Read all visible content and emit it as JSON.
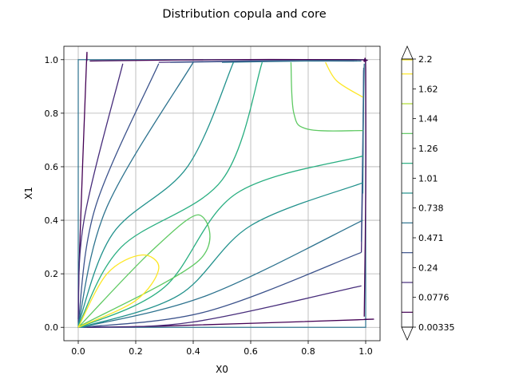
{
  "chart_data": {
    "type": "contour",
    "title": "Distribution copula and core",
    "xlabel": "X0",
    "ylabel": "X1",
    "xlim": [
      -0.05,
      1.05
    ],
    "ylim": [
      -0.05,
      1.05
    ],
    "xticks": [
      0.0,
      0.2,
      0.4,
      0.6,
      0.8,
      1.0
    ],
    "yticks": [
      0.0,
      0.2,
      0.4,
      0.6,
      0.8,
      1.0
    ],
    "xtick_labels": [
      "0.0",
      "0.2",
      "0.4",
      "0.6",
      "0.8",
      "1.0"
    ],
    "ytick_labels": [
      "0.0",
      "0.2",
      "0.4",
      "0.6",
      "0.8",
      "1.0"
    ],
    "grid": true,
    "colormap": "viridis",
    "extend": "both",
    "colorbar_tick_labels": [
      "0.00335",
      "0.0776",
      "0.24",
      "0.471",
      "0.738",
      "1.01",
      "1.26",
      "1.44",
      "1.62",
      "2.2"
    ],
    "level_colors": [
      "#440154",
      "#472d7b",
      "#3b528b",
      "#2c728e",
      "#21918c",
      "#28ae80",
      "#5ec962",
      "#addc30",
      "#fde725"
    ],
    "boundary_color": "#2c728e",
    "contours": [
      {
        "level_index": 0,
        "color": "#440154",
        "paths": [
          [
            [
              0.03,
              0.0
            ],
            [
              0.3,
              0.005
            ],
            [
              0.97,
              0.028
            ],
            [
              0.995,
              0.03
            ]
          ],
          [
            [
              0.0,
              0.03
            ],
            [
              0.005,
              0.3
            ],
            [
              0.028,
              0.97
            ],
            [
              0.03,
              0.995
            ]
          ],
          [
            [
              0.995,
              0.04
            ],
            [
              1.0,
              0.5
            ],
            [
              1.0,
              0.96
            ],
            [
              0.995,
              0.993
            ]
          ],
          [
            [
              0.04,
              0.995
            ],
            [
              0.5,
              1.0
            ],
            [
              0.96,
              1.0
            ],
            [
              0.993,
              0.995
            ]
          ]
        ]
      },
      {
        "level_index": 1,
        "color": "#472d7b",
        "paths": [
          [
            [
              0.02,
              0.0
            ],
            [
              0.4,
              0.02
            ],
            [
              0.985,
              0.155
            ]
          ],
          [
            [
              0.0,
              0.02
            ],
            [
              0.02,
              0.4
            ],
            [
              0.155,
              0.985
            ]
          ],
          [
            [
              0.985,
              0.28
            ],
            [
              0.99,
              0.6
            ],
            [
              0.993,
              0.96
            ]
          ],
          [
            [
              0.28,
              0.99
            ],
            [
              0.6,
              0.995
            ],
            [
              0.96,
              0.995
            ]
          ]
        ]
      },
      {
        "level_index": 2,
        "color": "#3b528b",
        "paths": [
          [
            [
              0.015,
              0.0
            ],
            [
              0.45,
              0.06
            ],
            [
              0.985,
              0.28
            ]
          ],
          [
            [
              0.0,
              0.015
            ],
            [
              0.06,
              0.45
            ],
            [
              0.28,
              0.985
            ]
          ],
          [
            [
              0.985,
              0.32
            ],
            [
              0.99,
              0.7
            ],
            [
              0.993,
              0.97
            ]
          ],
          [
            [
              0.32,
              0.99
            ],
            [
              0.7,
              0.995
            ],
            [
              0.97,
              0.995
            ]
          ]
        ]
      },
      {
        "level_index": 3,
        "color": "#2c728e",
        "paths": [
          [
            [
              0.01,
              0.0
            ],
            [
              0.45,
              0.12
            ],
            [
              0.99,
              0.4
            ]
          ],
          [
            [
              0.0,
              0.01
            ],
            [
              0.1,
              0.45
            ],
            [
              0.4,
              0.99
            ]
          ],
          [
            [
              0.99,
              0.5
            ],
            [
              0.992,
              0.8
            ],
            [
              0.995,
              0.985
            ]
          ],
          [
            [
              0.5,
              0.99
            ],
            [
              0.8,
              0.995
            ],
            [
              0.985,
              0.995
            ]
          ]
        ]
      },
      {
        "level_index": 4,
        "color": "#21918c",
        "paths": [
          [
            [
              0.01,
              0.0
            ],
            [
              0.35,
              0.12
            ],
            [
              0.6,
              0.38
            ],
            [
              0.99,
              0.54
            ]
          ],
          [
            [
              0.0,
              0.01
            ],
            [
              0.12,
              0.35
            ],
            [
              0.38,
              0.6
            ],
            [
              0.54,
              0.99
            ]
          ]
        ]
      },
      {
        "level_index": 5,
        "color": "#28ae80",
        "paths": [
          [
            [
              0.005,
              0.0
            ],
            [
              0.3,
              0.15
            ],
            [
              0.55,
              0.5
            ],
            [
              0.99,
              0.64
            ]
          ],
          [
            [
              0.0,
              0.005
            ],
            [
              0.15,
              0.3
            ],
            [
              0.5,
              0.55
            ],
            [
              0.64,
              0.99
            ]
          ]
        ]
      },
      {
        "level_index": 6,
        "color": "#5ec962",
        "paths": [
          [
            [
              0.003,
              0.003
            ],
            [
              0.25,
              0.28
            ],
            [
              0.42,
              0.42
            ],
            [
              0.42,
              0.25
            ],
            [
              0.003,
              0.003
            ]
          ],
          [
            [
              0.74,
              0.99
            ],
            [
              0.75,
              0.8
            ],
            [
              0.8,
              0.74
            ],
            [
              0.99,
              0.735
            ]
          ]
        ]
      },
      {
        "level_index": 8,
        "color": "#fde725",
        "paths": [
          [
            [
              0.0,
              0.0
            ],
            [
              0.1,
              0.2
            ],
            [
              0.22,
              0.27
            ],
            [
              0.28,
              0.22
            ],
            [
              0.2,
              0.1
            ],
            [
              0.0,
              0.0
            ]
          ],
          [
            [
              0.86,
              0.99
            ],
            [
              0.9,
              0.92
            ],
            [
              0.99,
              0.86
            ]
          ]
        ]
      }
    ]
  }
}
